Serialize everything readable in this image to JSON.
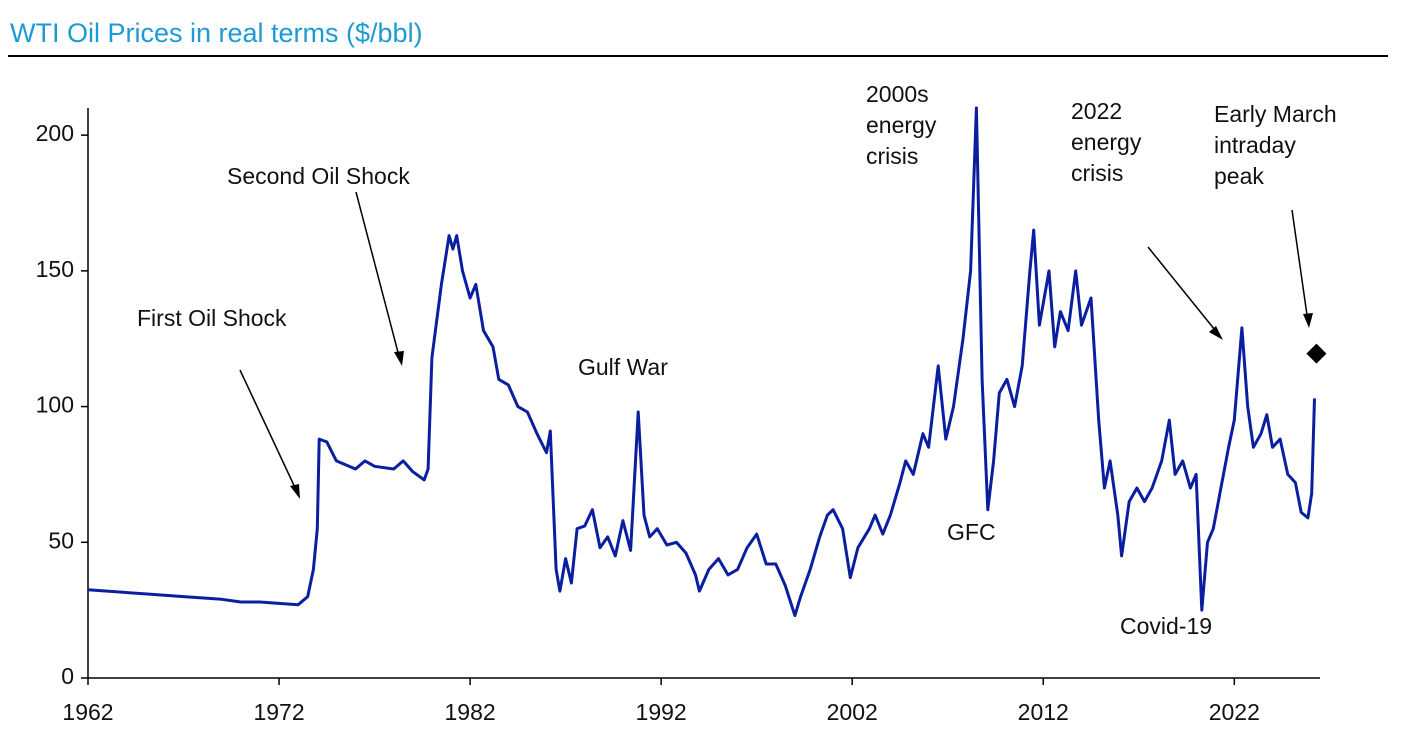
{
  "chart_data": {
    "type": "line",
    "title": "WTI Oil Prices in real terms ($/bbl)",
    "xlim": [
      1962,
      2026.8
    ],
    "ylim": [
      0,
      210
    ],
    "xticks": [
      1962,
      1972,
      1982,
      1992,
      2002,
      2012,
      2022
    ],
    "yticks": [
      0,
      50,
      100,
      150,
      200
    ],
    "series": [
      {
        "color": "#0a1fa0",
        "x": [
          1962,
          1965,
          1967,
          1969,
          1970,
          1971,
          1972,
          1973,
          1973.5,
          1973.8,
          1974,
          1974.1,
          1974.5,
          1975,
          1976,
          1976.5,
          1977,
          1978,
          1978.5,
          1979,
          1979.6,
          1979.8,
          1980,
          1980.5,
          1980.9,
          1981.1,
          1981.3,
          1981.6,
          1982,
          1982.3,
          1982.7,
          1983.2,
          1983.5,
          1984,
          1984.5,
          1985,
          1985.5,
          1986,
          1986.2,
          1986.5,
          1986.7,
          1987,
          1987.3,
          1987.6,
          1988,
          1988.4,
          1988.8,
          1989.2,
          1989.6,
          1990,
          1990.4,
          1990.8,
          1991.1,
          1991.4,
          1991.8,
          1992.3,
          1992.8,
          1993.3,
          1993.8,
          1994,
          1994.5,
          1995,
          1995.5,
          1996,
          1996.5,
          1997,
          1997.5,
          1998,
          1998.5,
          1999,
          1999.3,
          1999.8,
          2000.3,
          2000.7,
          2001,
          2001.5,
          2001.9,
          2002.3,
          2002.9,
          2003.2,
          2003.6,
          2004,
          2004.5,
          2004.8,
          2005.2,
          2005.7,
          2006,
          2006.5,
          2006.9,
          2007.3,
          2007.8,
          2008.2,
          2008.5,
          2008.8,
          2009.1,
          2009.4,
          2009.7,
          2010.1,
          2010.5,
          2010.9,
          2011.3,
          2011.5,
          2011.8,
          2012.3,
          2012.6,
          2012.9,
          2013.3,
          2013.7,
          2014,
          2014.5,
          2014.9,
          2015.2,
          2015.5,
          2015.9,
          2016.1,
          2016.5,
          2016.9,
          2017.3,
          2017.7,
          2018.2,
          2018.6,
          2018.9,
          2019.3,
          2019.7,
          2020,
          2020.3,
          2020.6,
          2020.9,
          2021.3,
          2021.7,
          2022,
          2022.4,
          2022.7,
          2023,
          2023.4,
          2023.7,
          2024,
          2024.4,
          2024.8,
          2025.2,
          2025.5,
          2025.85,
          2026.05,
          2026.2
        ],
        "values": [
          32.5,
          31,
          30,
          29,
          28,
          28,
          27.5,
          27,
          30,
          40,
          55,
          88,
          87,
          80,
          77,
          80,
          78,
          77,
          80,
          76,
          73,
          77,
          118,
          145,
          163,
          158,
          163,
          150,
          140,
          145,
          128,
          122,
          110,
          108,
          100,
          98,
          90,
          83,
          91,
          40,
          32,
          44,
          35,
          55,
          56,
          62,
          48,
          52,
          45,
          58,
          47,
          98,
          60,
          52,
          55,
          49,
          50,
          46,
          38,
          32,
          40,
          44,
          38,
          40,
          48,
          53,
          42,
          42,
          34,
          23,
          30,
          40,
          52,
          60,
          62,
          55,
          37,
          48,
          55,
          60,
          53,
          60,
          72,
          80,
          75,
          90,
          85,
          115,
          88,
          100,
          125,
          150,
          210,
          110,
          62,
          80,
          105,
          110,
          100,
          115,
          150,
          165,
          130,
          150,
          122,
          135,
          128,
          150,
          130,
          140,
          95,
          70,
          80,
          60,
          45,
          65,
          70,
          65,
          70,
          80,
          95,
          75,
          80,
          70,
          75,
          25,
          50,
          55,
          70,
          85,
          95,
          129,
          100,
          85,
          90,
          97,
          85,
          88,
          75,
          72,
          61,
          59,
          68,
          103
        ]
      }
    ],
    "marker": {
      "x": 2026.3,
      "y": 119.5,
      "color": "#000000"
    },
    "annotations": [
      {
        "lines": [
          "First Oil Shock"
        ]
      },
      {
        "lines": [
          "Second Oil Shock"
        ]
      },
      {
        "lines": [
          "Gulf War"
        ]
      },
      {
        "lines": [
          "2000s",
          "energy",
          "crisis"
        ]
      },
      {
        "lines": [
          "GFC"
        ]
      },
      {
        "lines": [
          "2022",
          "energy",
          "crisis"
        ]
      },
      {
        "lines": [
          "Covid-19"
        ]
      },
      {
        "lines": [
          "Early March",
          "intraday",
          "peak"
        ]
      }
    ]
  }
}
